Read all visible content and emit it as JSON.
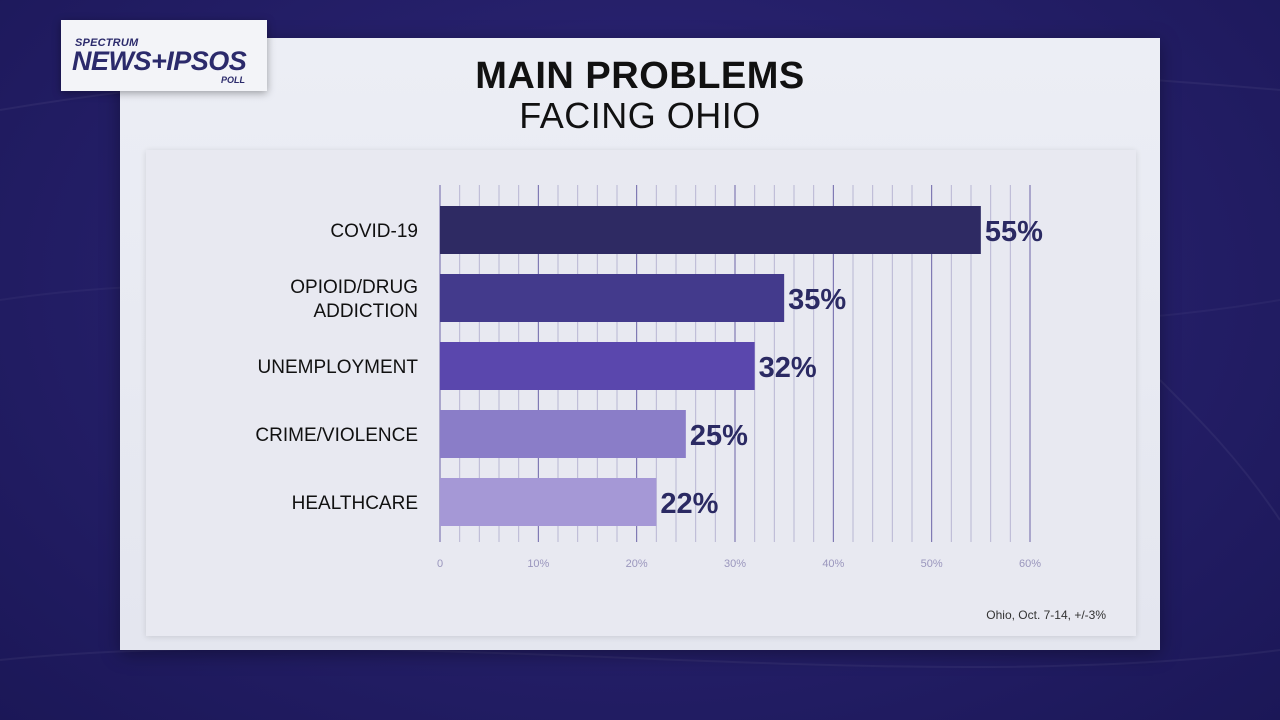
{
  "logo": {
    "line1": "SPECTRUM",
    "line2": "NEWS+IPSOS",
    "line3": "POLL"
  },
  "title": "MAIN PROBLEMS",
  "subtitle": "FACING OHIO",
  "footnote": "Ohio, Oct. 7-14, +/-3%",
  "chart_data": {
    "type": "bar",
    "orientation": "horizontal",
    "categories": [
      [
        "COVID-19"
      ],
      [
        "OPIOID/DRUG",
        "ADDICTION"
      ],
      [
        "UNEMPLOYMENT"
      ],
      [
        "CRIME/VIOLENCE"
      ],
      [
        "HEALTHCARE"
      ]
    ],
    "values": [
      55,
      35,
      32,
      25,
      22
    ],
    "data_labels": [
      "55%",
      "35%",
      "32%",
      "25%",
      "22%"
    ],
    "bar_colors": [
      "#2e2a63",
      "#433a8c",
      "#5a47ad",
      "#8a7dc8",
      "#a598d6"
    ],
    "xlim": [
      0,
      60
    ],
    "xticks": [
      "0",
      "10%",
      "20%",
      "30%",
      "40%",
      "50%",
      "60%"
    ],
    "grid": true
  }
}
